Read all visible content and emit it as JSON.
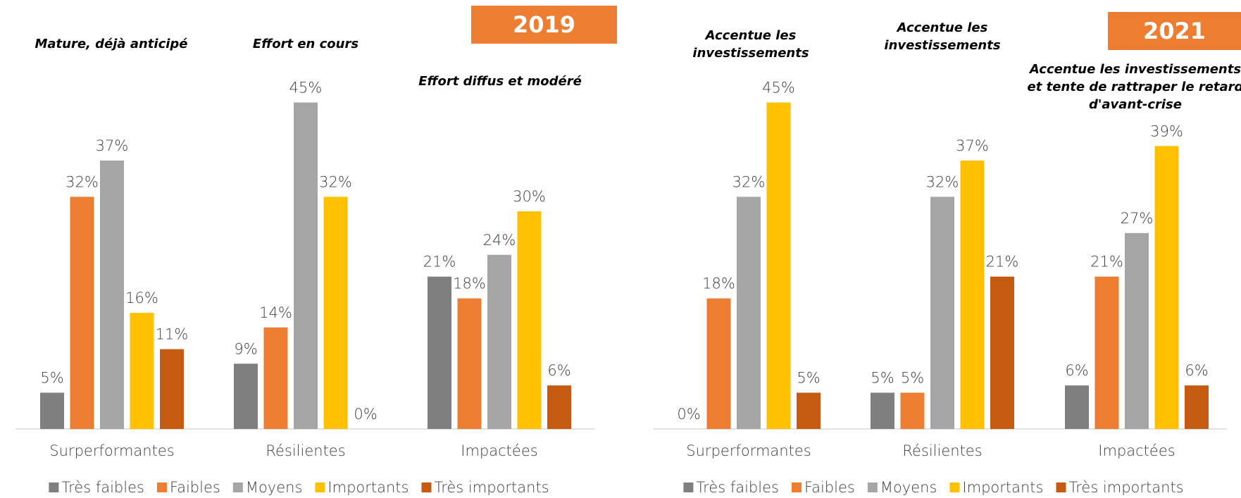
{
  "chart_data": [
    {
      "type": "bar",
      "title": "2019",
      "annotations": [
        "Mature, déjà anticipé",
        "Effort en cours",
        "Effort diffus et modéré"
      ],
      "categories": [
        "Surperformantes",
        "Résilientes",
        "Impactées"
      ],
      "series": [
        {
          "name": "Très faibles",
          "color": "#7f7f7f",
          "values": [
            5,
            9,
            21
          ],
          "value_labels": [
            "5%",
            "9%",
            "21%"
          ]
        },
        {
          "name": "Faibles",
          "color": "#ed7d31",
          "values": [
            32,
            14,
            18
          ],
          "value_labels": [
            "32%",
            "14%",
            "18%"
          ]
        },
        {
          "name": "Moyens",
          "color": "#a5a5a5",
          "values": [
            37,
            45,
            24
          ],
          "value_labels": [
            "37%",
            "45%",
            "24%"
          ]
        },
        {
          "name": "Importants",
          "color": "#ffc000",
          "values": [
            16,
            32,
            30
          ],
          "value_labels": [
            "16%",
            "32%",
            "30%"
          ]
        },
        {
          "name": "Très importants",
          "color": "#c55a11",
          "values": [
            11,
            0,
            6
          ],
          "value_labels": [
            "11%",
            "0%",
            "6%"
          ]
        }
      ],
      "legend": "bottom"
    },
    {
      "type": "bar",
      "title": "2021",
      "annotations": [
        "Accentue les investissements",
        "Accentue les investissements",
        "Accentue les investissements et tente de rattraper le retard d'avant-crise"
      ],
      "categories": [
        "Surperformantes",
        "Résilientes",
        "Impactées"
      ],
      "series": [
        {
          "name": "Très faibles",
          "color": "#7f7f7f",
          "values": [
            0,
            5,
            6
          ],
          "value_labels": [
            "0%",
            "5%",
            "6%"
          ]
        },
        {
          "name": "Faibles",
          "color": "#ed7d31",
          "values": [
            18,
            5,
            21
          ],
          "value_labels": [
            "18%",
            "5%",
            "21%"
          ]
        },
        {
          "name": "Moyens",
          "color": "#a5a5a5",
          "values": [
            32,
            32,
            27
          ],
          "value_labels": [
            "32%",
            "32%",
            "27%"
          ]
        },
        {
          "name": "Importants",
          "color": "#ffc000",
          "values": [
            45,
            37,
            39
          ],
          "value_labels": [
            "45%",
            "37%",
            "39%"
          ]
        },
        {
          "name": "Très importants",
          "color": "#c55a11",
          "values": [
            5,
            21,
            6
          ],
          "value_labels": [
            "5%",
            "21%",
            "6%"
          ]
        }
      ],
      "legend": "bottom"
    }
  ]
}
